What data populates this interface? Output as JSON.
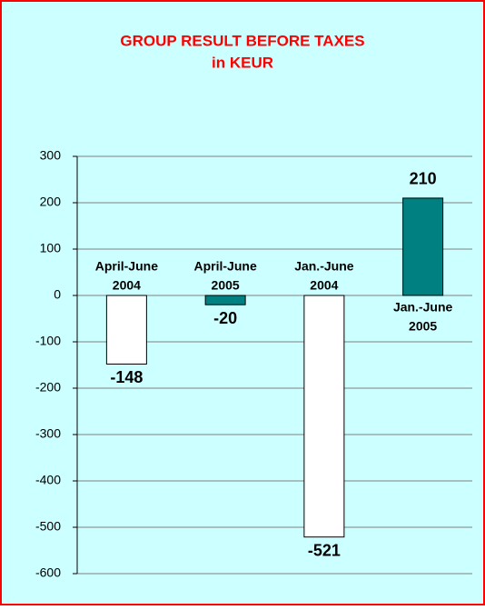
{
  "chart_data": {
    "type": "bar",
    "title": [
      "GROUP RESULT BEFORE TAXES",
      "in KEUR"
    ],
    "categories": [
      [
        "April-June",
        "2004"
      ],
      [
        "April-June",
        "2005"
      ],
      [
        "Jan.-June",
        "2004"
      ],
      [
        "Jan.-June",
        "2005"
      ]
    ],
    "values": [
      -148,
      -20,
      -521,
      210
    ],
    "colors": [
      "#ffffff",
      "#008080",
      "#ffffff",
      "#008080"
    ],
    "ylim": [
      -600,
      300
    ],
    "yticks": [
      -600,
      -500,
      -400,
      -300,
      -200,
      -100,
      0,
      100,
      200,
      300
    ],
    "grid": true
  }
}
